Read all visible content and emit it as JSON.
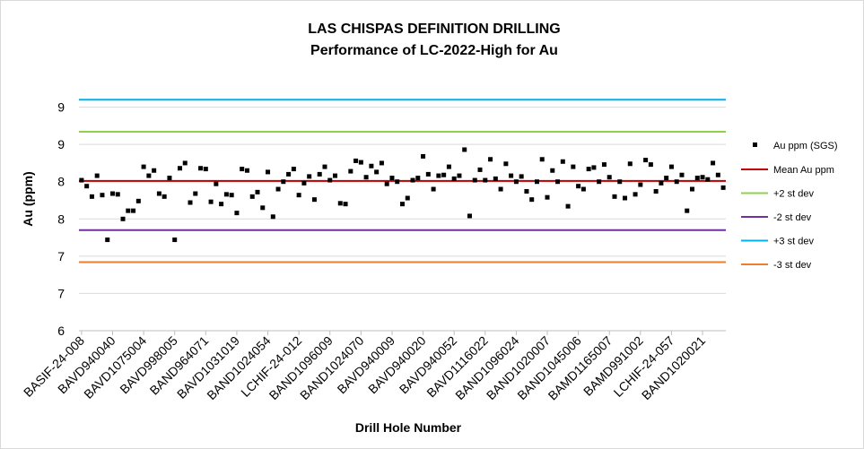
{
  "chart_data": {
    "type": "scatter",
    "title_line1": "LAS CHISPAS DEFINITION DRILLING",
    "title_line2": "Performance of LC-2022-High for Au",
    "xlabel": "Drill Hole Number",
    "ylabel": "Au (ppm)",
    "ylim": [
      6.0,
      9.5
    ],
    "y_ticks": [
      {
        "value": 6.0,
        "label": "6"
      },
      {
        "value": 6.5,
        "label": "7"
      },
      {
        "value": 7.0,
        "label": "7"
      },
      {
        "value": 7.5,
        "label": "8"
      },
      {
        "value": 8.0,
        "label": "8"
      },
      {
        "value": 8.5,
        "label": "9"
      },
      {
        "value": 9.0,
        "label": "9"
      }
    ],
    "x_tick_labels": [
      {
        "index": 0,
        "label": "BASIF-24-008"
      },
      {
        "index": 6,
        "label": "BAVD940040"
      },
      {
        "index": 12,
        "label": "BAVD1075004"
      },
      {
        "index": 18,
        "label": "BAVD998005"
      },
      {
        "index": 24,
        "label": "BAND964071"
      },
      {
        "index": 30,
        "label": "BAVD1031019"
      },
      {
        "index": 36,
        "label": "BAND1024054"
      },
      {
        "index": 42,
        "label": "LCHIF-24-012"
      },
      {
        "index": 48,
        "label": "BAND1096009"
      },
      {
        "index": 54,
        "label": "BAND1024070"
      },
      {
        "index": 60,
        "label": "BAVD940009"
      },
      {
        "index": 66,
        "label": "BAVD940020"
      },
      {
        "index": 72,
        "label": "BAVD940052"
      },
      {
        "index": 78,
        "label": "BAVD1116022"
      },
      {
        "index": 84,
        "label": "BAND1096024"
      },
      {
        "index": 90,
        "label": "BAND1020007"
      },
      {
        "index": 96,
        "label": "BAND1045006"
      },
      {
        "index": 102,
        "label": "BAMD1165007"
      },
      {
        "index": 108,
        "label": "BAMD991002"
      },
      {
        "index": 114,
        "label": "LCHIF-24-057"
      },
      {
        "index": 120,
        "label": "BAND1020021"
      }
    ],
    "point_count": 125,
    "series": [
      {
        "name": "Au ppm (SGS)",
        "color": "#000000",
        "marker": "square",
        "values": [
          8.02,
          7.94,
          7.8,
          8.08,
          7.82,
          7.22,
          7.84,
          7.83,
          7.5,
          7.61,
          7.61,
          7.74,
          8.2,
          8.08,
          8.15,
          7.84,
          7.8,
          8.05,
          7.22,
          8.18,
          8.25,
          7.72,
          7.84,
          8.18,
          8.17,
          7.73,
          7.97,
          7.7,
          7.83,
          7.82,
          7.58,
          8.17,
          8.15,
          7.8,
          7.86,
          7.65,
          8.13,
          7.53,
          7.9,
          8.0,
          8.1,
          8.17,
          7.82,
          7.98,
          8.07,
          7.76,
          8.1,
          8.2,
          8.02,
          8.08,
          7.71,
          7.7,
          8.14,
          8.28,
          8.26,
          8.06,
          8.21,
          8.13,
          8.25,
          7.97,
          8.05,
          8.0,
          7.7,
          7.78,
          8.02,
          8.05,
          8.34,
          8.1,
          7.9,
          8.08,
          8.09,
          8.2,
          8.04,
          8.08,
          8.43,
          7.54,
          8.02,
          8.16,
          8.02,
          8.3,
          8.04,
          7.9,
          8.24,
          8.08,
          8.0,
          8.07,
          7.87,
          7.76,
          8.0,
          8.3,
          7.79,
          8.15,
          8.0,
          8.27,
          7.67,
          8.2,
          7.94,
          7.9,
          8.17,
          8.19,
          8.0,
          8.23,
          8.06,
          7.8,
          8.0,
          7.78,
          8.24,
          7.83,
          7.96,
          8.29,
          8.23,
          7.87,
          7.98,
          8.05,
          8.2,
          8.0,
          8.09,
          7.61,
          7.9,
          8.05,
          8.06,
          8.03,
          8.25,
          8.09,
          7.92
        ]
      }
    ],
    "reference_lines": [
      {
        "name": "Mean Au ppm",
        "value": 8.01,
        "color": "#c00000"
      },
      {
        "name": "+2 st dev",
        "value": 8.67,
        "color": "#92d050"
      },
      {
        "name": "-2 st dev",
        "value": 7.35,
        "color": "#7030a0"
      },
      {
        "name": "+3 st dev",
        "value": 9.1,
        "color": "#00b0f0"
      },
      {
        "name": "-3 st dev",
        "value": 6.92,
        "color": "#ed7d31"
      }
    ],
    "legend_placement": "right",
    "grid": {
      "horizontal": true,
      "vertical": false,
      "color": "#d9d9d9"
    }
  }
}
